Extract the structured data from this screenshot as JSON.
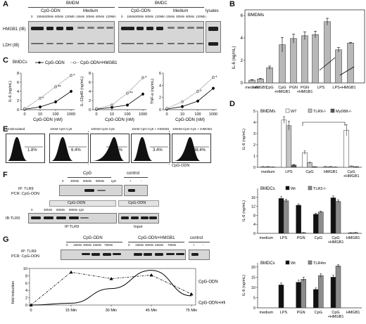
{
  "panels": {
    "A": {
      "label": "A",
      "bmdm_header": "BMDM",
      "bmdc_header": "BMDC",
      "lysates": "lysates",
      "cpg": "CpG-ODN",
      "medium": "Medium",
      "bmdm_lanes": [
        "0",
        "15Min",
        "30Min",
        "60Min",
        "120Min",
        "15Min",
        "30Min",
        "60Min",
        "120Min"
      ],
      "bmdc_lanes": [
        "0",
        "15Min",
        "30Min",
        "60Min",
        "120Min",
        "15Min",
        "30Min",
        "60Min",
        "120Min"
      ],
      "row1": "HMGB1 (IB)",
      "row2": "LDH (IB)"
    },
    "B": {
      "label": "B",
      "title": "BMDMs",
      "ylabel": "IL-6 (ng/mL)",
      "categories": [
        "medium",
        "HMGB1",
        "CpG",
        "CpG +HMGB1",
        "PGN",
        "PGN +HMGB1",
        "LPS",
        "LPS",
        "LPS+HMGB1",
        "LPS+HMGB1"
      ],
      "tick_labels": [
        "medium",
        "HMGB1",
        "CpG",
        "CpG\n+HMGB1",
        "PGN",
        "PGN\n+HMGB1",
        "LPS",
        "LPS+HMGB1"
      ],
      "values": [
        0.25,
        0.35,
        1.35,
        3.4,
        3.95,
        4.2,
        4.3,
        5.45,
        2.95,
        3.55
      ],
      "errors": [
        0.05,
        0.05,
        0.15,
        0.65,
        0.4,
        0.35,
        0.3,
        0.3,
        0.2,
        0.05
      ],
      "yticks": [
        "0",
        "2",
        "4",
        "6"
      ],
      "ylim": [
        0,
        6.5
      ]
    },
    "C": {
      "label": "C",
      "title": "BMDCs",
      "legend": [
        "CpG-ODN",
        "CpG-ODN+HMGB1"
      ],
      "xlabel": "CpG-ODN (nM)",
      "xticks": [
        "0",
        "10",
        "100",
        "1000"
      ],
      "charts": [
        {
          "ylabel": "IL-6 (ng/mL)",
          "yticks": [
            "0",
            "2",
            "4",
            "6",
            "8"
          ],
          "ylim": [
            0,
            8
          ],
          "x": [
            0,
            10,
            100,
            1000
          ],
          "series": [
            {
              "name": "CpG-ODN",
              "values": [
                0.1,
                0.6,
                1.7,
                4.0
              ]
            },
            {
              "name": "CpG-ODN+HMGB1",
              "values": [
                0.2,
                2.5,
                5.0,
                7.5
              ]
            }
          ],
          "stars": [
            "*",
            "**",
            "*"
          ]
        },
        {
          "ylabel": "IL-12p40 (ng/mL)",
          "yticks": [
            "0",
            "2",
            "4",
            "6",
            "8"
          ],
          "ylim": [
            0,
            8
          ],
          "x": [
            0,
            10,
            100,
            1000
          ],
          "series": [
            {
              "name": "CpG-ODN",
              "values": [
                0.1,
                0.5,
                1.0,
                3.4
              ]
            },
            {
              "name": "CpG-ODN+HMGB1",
              "values": [
                0.2,
                1.0,
                3.6,
                7.0
              ]
            }
          ],
          "stars": [
            "**",
            "*"
          ]
        },
        {
          "ylabel": "TNF-α (ng/mL)",
          "yticks": [
            "0",
            "2",
            "4",
            "6"
          ],
          "ylim": [
            0,
            6
          ],
          "x": [
            0,
            10,
            100,
            1000
          ],
          "series": [
            {
              "name": "CpG-ODN",
              "values": [
                0.1,
                0.5,
                1.4,
                3.5
              ]
            },
            {
              "name": "CpG-ODN+HMGB1",
              "values": [
                0.2,
                1.3,
                3.0,
                5.3
              ]
            }
          ],
          "stars": [
            "*",
            "*"
          ]
        }
      ]
    },
    "D": {
      "label": "D",
      "charts": [
        {
          "title": "BMDMs",
          "ylabel": "IL-6 (ng/mL)",
          "legend": [
            "WT",
            "TLR9-/-",
            "MyD88-/-"
          ],
          "categories": [
            "medium",
            "LPS",
            "CpG",
            "HMGB1",
            "CpG +HMGB1"
          ],
          "tick_labels": [
            "medium",
            "LPS",
            "CpG",
            "HMGB1",
            "CpG\n+HMGB1"
          ],
          "series": [
            {
              "name": "WT",
              "values": [
                0.05,
                4.2,
                1.3,
                0.05,
                3.3
              ]
            },
            {
              "name": "TLR9-/-",
              "values": [
                0.05,
                3.7,
                0.4,
                0.05,
                0.1
              ]
            },
            {
              "name": "MyD88-/-",
              "values": [
                0.02,
                0.2,
                0.05,
                0.02,
                0.05
              ]
            }
          ],
          "errors": [
            [
              0.02,
              0.3,
              0.15,
              0.02,
              0.5
            ],
            [
              0.02,
              0.4,
              0.05,
              0.02,
              0.02
            ],
            [
              0.01,
              0.05,
              0.01,
              0.01,
              0.01
            ]
          ],
          "yticks": [
            "0",
            "1",
            "2",
            "3",
            "4",
            "5"
          ],
          "ylim": [
            0,
            5
          ]
        },
        {
          "title": "BMDCs",
          "ylabel": "IL-6 (ng/mL)",
          "legend": [
            "Wt",
            "TLR2-/-"
          ],
          "categories": [
            "medium",
            "LPS",
            "PGN",
            "CpG",
            "CpG +HMGB1",
            "HMGB1"
          ],
          "tick_labels": [
            "medium",
            "LPS",
            "PGN",
            "CpG",
            "CpG\n+HMGB1",
            "HMGB1"
          ],
          "series": [
            {
              "name": "Wt",
              "values": [
                0,
                15.5,
                12.5,
                8.5,
                15.8,
                0.2
              ]
            },
            {
              "name": "TLR2-/-",
              "values": [
                0,
                14.5,
                0.3,
                9.5,
                14.2,
                0.3
              ]
            }
          ],
          "errors": [
            [
              0,
              0.8,
              0.6,
              0.5,
              0.8,
              0.1
            ],
            [
              0,
              0.7,
              0.1,
              0.4,
              0.7,
              0.1
            ]
          ],
          "yticks": [
            "0",
            "4",
            "8",
            "12",
            "16"
          ],
          "ylim": [
            0,
            20
          ]
        },
        {
          "title": "BMDCs",
          "ylabel": "IL-6 (ng/mL)",
          "legend": [
            "Wt",
            "TLR4m"
          ],
          "categories": [
            "medium",
            "LPS",
            "PGN",
            "CpG",
            "CpG +HMGB1",
            "HMGB1"
          ],
          "tick_labels": [
            "medium",
            "LPS",
            "PGN",
            "CpG",
            "CpG\n+HMGB1",
            "HMGB1"
          ],
          "series": [
            {
              "name": "Wt",
              "values": [
                0,
                11.2,
                12.5,
                9.0,
                15.0,
                0
              ]
            },
            {
              "name": "TLR4m",
              "values": [
                0,
                0,
                14.0,
                15.8,
                20.5,
                0
              ]
            }
          ],
          "errors": [
            [
              0,
              0.9,
              1.0,
              0.7,
              0.9,
              0
            ],
            [
              0,
              0,
              1.0,
              0.9,
              0.6,
              0
            ]
          ],
          "yticks": [
            "0",
            "5",
            "10",
            "15",
            "20"
          ],
          "ylim": [
            0,
            22
          ]
        }
      ]
    },
    "E": {
      "label": "E",
      "boxes": [
        {
          "title": "Unstimulated",
          "pct": "1.8%"
        },
        {
          "title": "10nM CpG-Cy5",
          "pct": "6.4%"
        },
        {
          "title": "100nM CpG-Cy5",
          "pct": "74.1%"
        },
        {
          "title": "10nM CpG-Cy5 + rHMGB1",
          "pct": "3.4%"
        },
        {
          "title": "100nM CpG-Cy5 + rHMGB1",
          "pct": "48.4%"
        }
      ],
      "xlabel": "CpG-ODN"
    },
    "F": {
      "label": "F",
      "ip": "IP: TLR9",
      "pcr": "PCR: CpG-ODN",
      "cpg": "CpG",
      "control": "control",
      "lanes_top": [
        "0",
        "30Min",
        "60Min",
        "90Min",
        "IgG",
        "+",
        "-"
      ],
      "ib": "IB:TLR9",
      "cpg_odn": "CpG-ODN",
      "lanes_bottom": [
        "0",
        "30Min",
        "60Min",
        "90Min",
        "IgG"
      ],
      "ip_tlr9": "IP:TLR9",
      "input": "Input"
    },
    "G": {
      "label": "G",
      "ip": "IP: TLR9",
      "pcr": "PCR: CpG-ODN",
      "header_cpg": "CpG-ODN",
      "header_cpg_hmgb1": "CpG-ODN+HMGB1",
      "control": "control",
      "lanes": [
        "0",
        "15Min",
        "30Min",
        "45Min",
        "75Min",
        "0",
        "15Min",
        "30Min",
        "45Min",
        "75Min",
        "+",
        "-"
      ],
      "chart_data": {
        "type": "line",
        "ylabel": "fold induction",
        "x": [
          "0",
          "15 Min",
          "30 Min",
          "45 Min",
          "75 Min"
        ],
        "yticks": [
          "0",
          "2",
          "4",
          "6",
          "8",
          "10"
        ],
        "ylim": [
          0,
          10
        ],
        "series": [
          {
            "name": "CpG-ODN",
            "values": [
              0,
              0.5,
              4.5,
              9.5,
              2.5
            ]
          },
          {
            "name": "CpG-ODN+HMGB1",
            "values": [
              0,
              9.0,
              7.2,
              8.2,
              3.0
            ]
          }
        ]
      }
    }
  }
}
